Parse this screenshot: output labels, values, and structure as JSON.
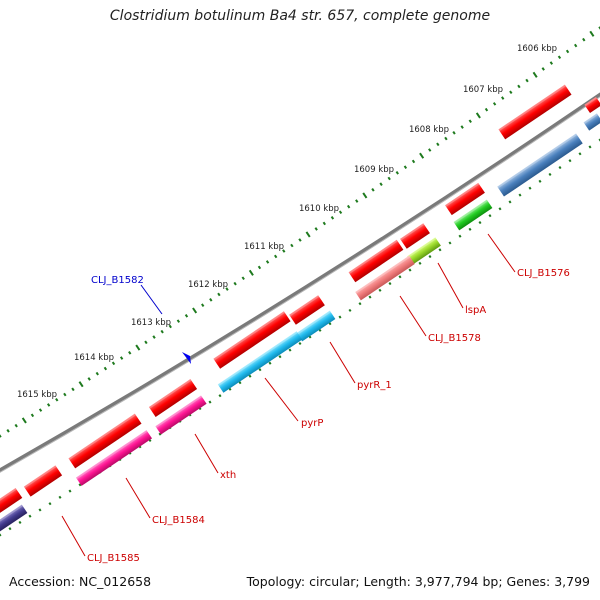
{
  "title": "Clostridium botulinum Ba4 str. 657, complete genome",
  "accession_label": "Accession: NC_012658",
  "summary_label": "Topology: circular; Length: 3,977,794 bp; Genes: 3,799",
  "ruler_ticks": [
    {
      "label": "1606 kbp"
    },
    {
      "label": "1607 kbp"
    },
    {
      "label": "1608 kbp"
    },
    {
      "label": "1609 kbp"
    },
    {
      "label": "1610 kbp"
    },
    {
      "label": "1611 kbp"
    },
    {
      "label": "1612 kbp"
    },
    {
      "label": "1613 kbp"
    },
    {
      "label": "1614 kbp"
    },
    {
      "label": "1615 kbp"
    }
  ],
  "genes": [
    {
      "label": "CLJ_B1576",
      "color": "#cc0000"
    },
    {
      "label": "lspA",
      "color": "#cc0000"
    },
    {
      "label": "CLJ_B1578",
      "color": "#cc0000"
    },
    {
      "label": "pyrR_1",
      "color": "#cc0000"
    },
    {
      "label": "pyrP",
      "color": "#cc0000"
    },
    {
      "label": "xth",
      "color": "#cc0000"
    },
    {
      "label": "CLJ_B1584",
      "color": "#cc0000"
    },
    {
      "label": "CLJ_B1585",
      "color": "#cc0000"
    },
    {
      "label": "CLJ_B1582",
      "color": "#0000cc"
    }
  ],
  "colors": {
    "cds": "#ff0000",
    "backbone": "#7a7a7a",
    "ruler_dots": "#1e7a1e",
    "blue_marker": "#0000ee"
  }
}
